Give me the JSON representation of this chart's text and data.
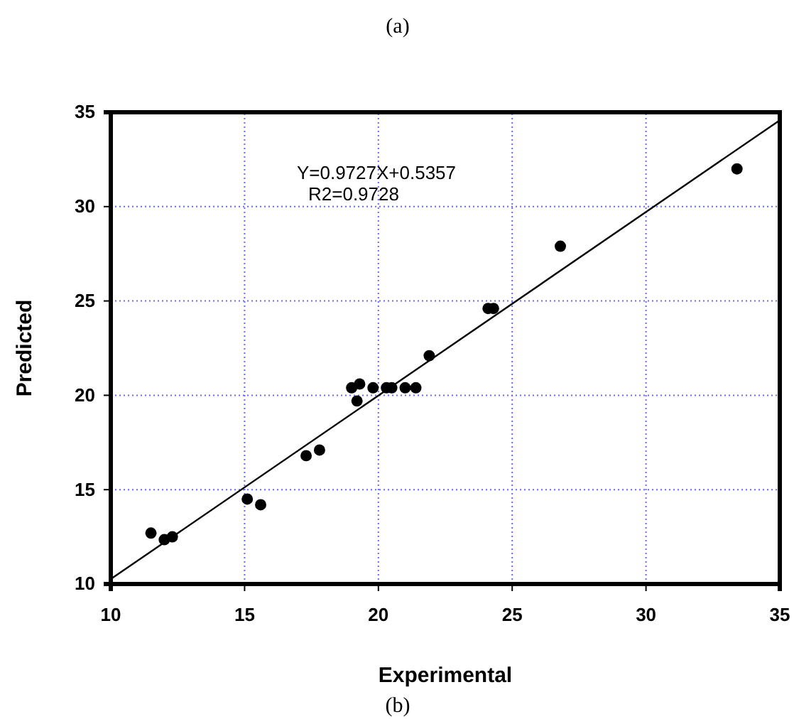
{
  "chart_data": {
    "type": "scatter",
    "xlabel": "Experimental",
    "ylabel": "Predicted",
    "annotations": [
      "(a)",
      "Y=0.9727X+0.5357",
      "R2=0.9728",
      "(b)"
    ],
    "xlim": [
      10,
      35
    ],
    "ylim": [
      10,
      35
    ],
    "xticks": [
      10,
      15,
      20,
      25,
      30,
      35
    ],
    "yticks": [
      10,
      15,
      20,
      25,
      30,
      35
    ],
    "grid": true,
    "marker": "circle",
    "series": [
      {
        "type": "scatter",
        "color": "#000000",
        "x": [
          11.5,
          12.0,
          12.3,
          15.1,
          15.6,
          17.3,
          17.8,
          19.0,
          19.3,
          19.2,
          19.8,
          20.3,
          20.5,
          21.0,
          21.4,
          21.9,
          24.1,
          24.3,
          26.8,
          33.4
        ],
        "values": [
          12.7,
          12.35,
          12.5,
          14.5,
          14.2,
          16.8,
          17.1,
          20.4,
          20.6,
          19.7,
          20.4,
          20.4,
          20.4,
          20.4,
          20.4,
          22.1,
          24.6,
          24.6,
          27.9,
          32.0
        ]
      },
      {
        "type": "line",
        "color": "#000000",
        "line_style": "solid",
        "marker": "none",
        "x": [
          10,
          35
        ],
        "values": [
          10.26,
          34.58
        ]
      }
    ]
  }
}
